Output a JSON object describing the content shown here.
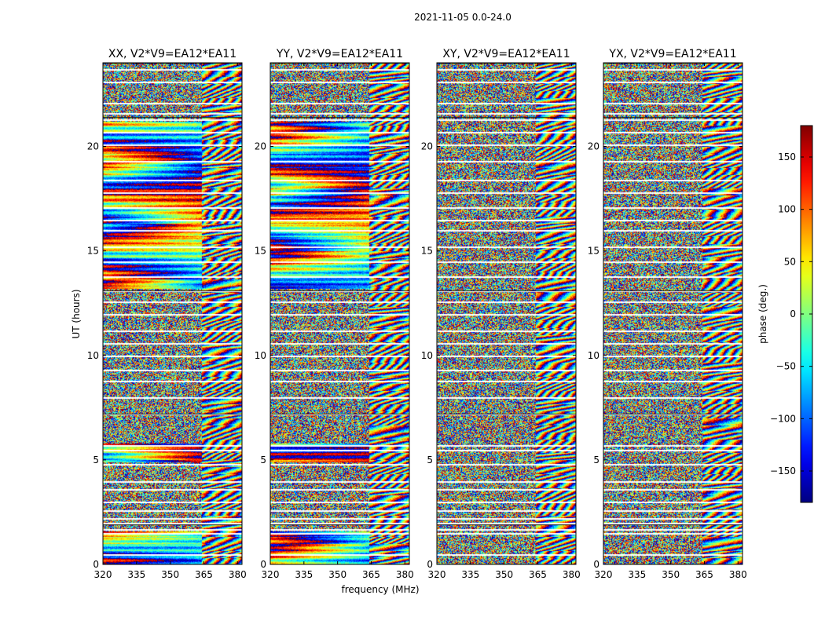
{
  "chart_data": {
    "type": "heatmap",
    "suptitle": "2021-11-05 0.0-24.0",
    "xlabel": "frequency (MHz)",
    "ylabel": "UT (hours)",
    "xlim": [
      320,
      382
    ],
    "ylim": [
      0,
      24
    ],
    "x_ticks": [
      320,
      335,
      350,
      365,
      380
    ],
    "y_ticks": [
      0,
      5,
      10,
      15,
      20
    ],
    "panels": [
      {
        "title": "XX, V2*V9=EA12*EA11",
        "polarization": "XX"
      },
      {
        "title": "YY, V2*V9=EA12*EA11",
        "polarization": "YY"
      },
      {
        "title": "XY, V2*V9=EA12*EA11",
        "polarization": "XY"
      },
      {
        "title": "YX, V2*V9=EA12*EA11",
        "polarization": "YX"
      }
    ],
    "colorbar": {
      "label": "phase (deg.)",
      "colormap": "jet",
      "range": [
        -180,
        180
      ],
      "ticks": [
        -150,
        -100,
        -50,
        0,
        50,
        100,
        150
      ],
      "tick_labels": [
        "−150",
        "−100",
        "−50",
        "0",
        "50",
        "100",
        "150"
      ]
    },
    "flagged_gaps_hours": [
      0.5,
      1.5,
      1.7,
      2.0,
      2.2,
      2.6,
      3.0,
      3.6,
      4.0,
      4.8,
      5.5,
      5.7,
      7.2,
      8.0,
      8.8,
      9.3,
      10.0,
      10.6,
      11.2,
      12.0,
      12.6,
      13.1,
      13.8,
      14.5,
      15.2,
      16.0,
      16.5,
      17.1,
      17.8,
      18.4,
      19.3,
      20.1,
      20.7,
      21.3,
      21.6,
      22.1,
      23.1,
      23.7
    ],
    "channel_change_mhz": 364
  }
}
